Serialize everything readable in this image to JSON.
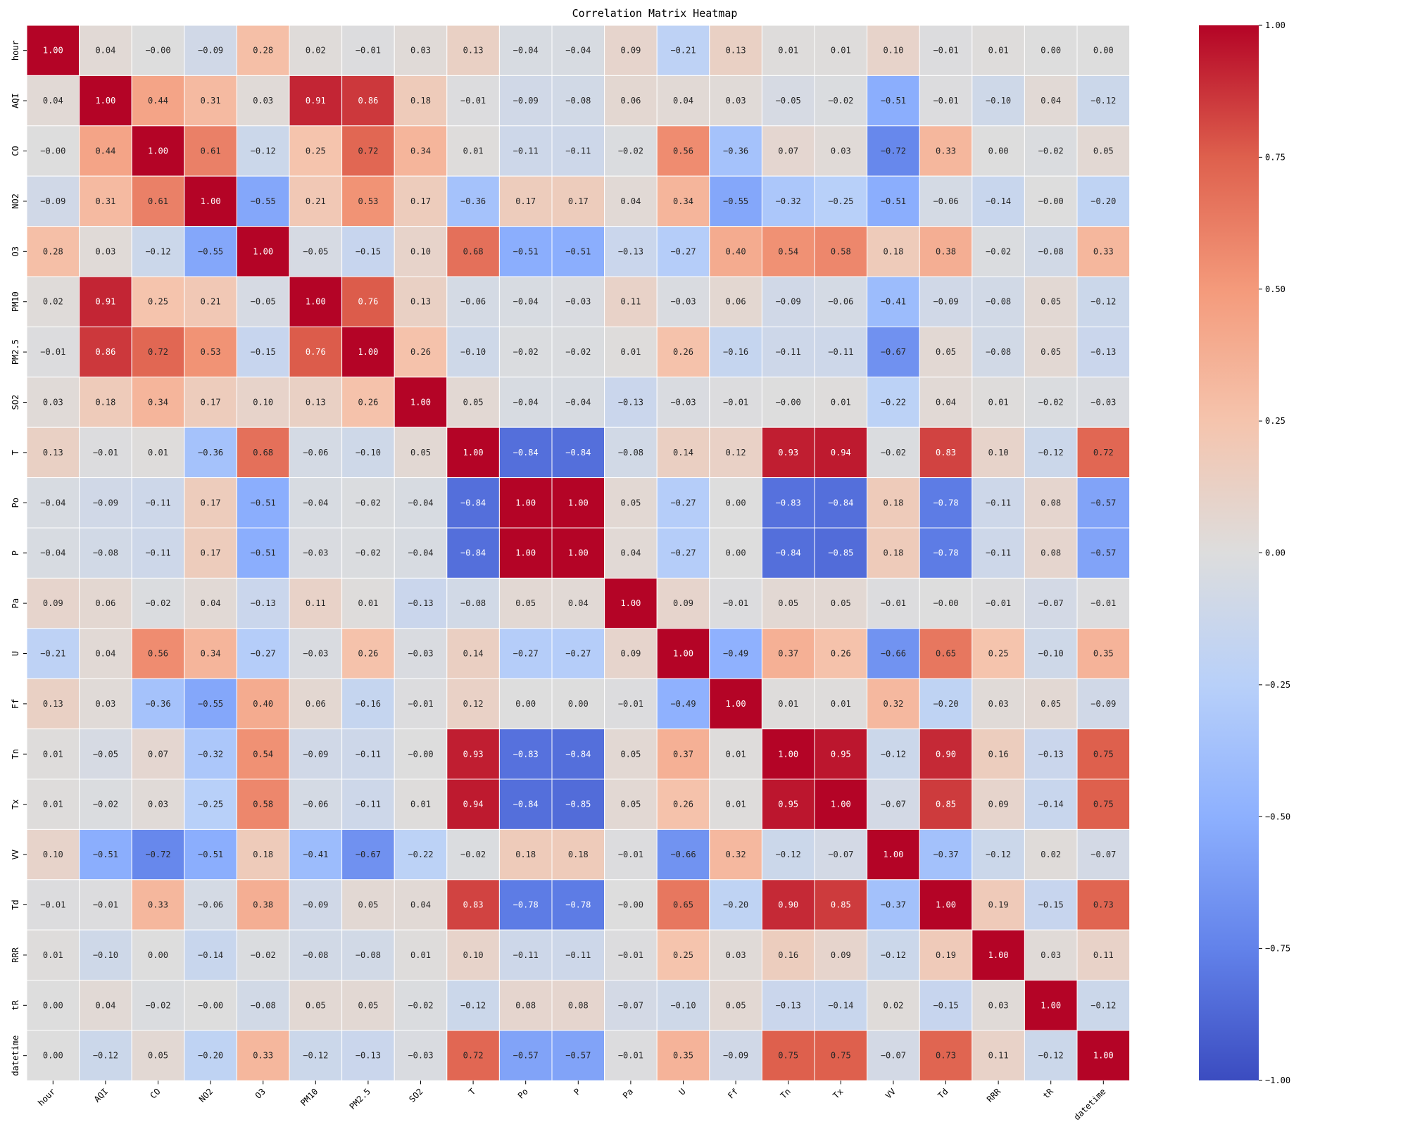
{
  "chart_data": {
    "type": "heatmap",
    "title": "Correlation Matrix Heatmap",
    "xlabel": "",
    "ylabel": "",
    "labels": [
      "hour",
      "AQI",
      "CO",
      "NO2",
      "O3",
      "PM10",
      "PM2.5",
      "SO2",
      "T",
      "Po",
      "P",
      "Pa",
      "U",
      "Ff",
      "Tn",
      "Tx",
      "VV",
      "Td",
      "RRR",
      "tR",
      "datetime"
    ],
    "values": [
      [
        1.0,
        0.04,
        -0.0,
        -0.09,
        0.28,
        0.02,
        -0.01,
        0.03,
        0.13,
        -0.04,
        -0.04,
        0.09,
        -0.21,
        0.13,
        0.01,
        0.01,
        0.1,
        -0.01,
        0.01,
        0.0,
        0.0
      ],
      [
        0.04,
        1.0,
        0.44,
        0.31,
        0.03,
        0.91,
        0.86,
        0.18,
        -0.01,
        -0.09,
        -0.08,
        0.06,
        0.04,
        0.03,
        -0.05,
        -0.02,
        -0.51,
        -0.01,
        -0.1,
        0.04,
        -0.12
      ],
      [
        -0.0,
        0.44,
        1.0,
        0.61,
        -0.12,
        0.25,
        0.72,
        0.34,
        0.01,
        -0.11,
        -0.11,
        -0.02,
        0.56,
        -0.36,
        0.07,
        0.03,
        -0.72,
        0.33,
        0.0,
        -0.02,
        0.05
      ],
      [
        -0.09,
        0.31,
        0.61,
        1.0,
        -0.55,
        0.21,
        0.53,
        0.17,
        -0.36,
        0.17,
        0.17,
        0.04,
        0.34,
        -0.55,
        -0.32,
        -0.25,
        -0.51,
        -0.06,
        -0.14,
        -0.0,
        -0.2
      ],
      [
        0.28,
        0.03,
        -0.12,
        -0.55,
        1.0,
        -0.05,
        -0.15,
        0.1,
        0.68,
        -0.51,
        -0.51,
        -0.13,
        -0.27,
        0.4,
        0.54,
        0.58,
        0.18,
        0.38,
        -0.02,
        -0.08,
        0.33
      ],
      [
        0.02,
        0.91,
        0.25,
        0.21,
        -0.05,
        1.0,
        0.76,
        0.13,
        -0.06,
        -0.04,
        -0.03,
        0.11,
        -0.03,
        0.06,
        -0.09,
        -0.06,
        -0.41,
        -0.09,
        -0.08,
        0.05,
        -0.12
      ],
      [
        -0.01,
        0.86,
        0.72,
        0.53,
        -0.15,
        0.76,
        1.0,
        0.26,
        -0.1,
        -0.02,
        -0.02,
        0.01,
        0.26,
        -0.16,
        -0.11,
        -0.11,
        -0.67,
        0.05,
        -0.08,
        0.05,
        -0.13
      ],
      [
        0.03,
        0.18,
        0.34,
        0.17,
        0.1,
        0.13,
        0.26,
        1.0,
        0.05,
        -0.04,
        -0.04,
        -0.13,
        -0.03,
        -0.01,
        -0.0,
        0.01,
        -0.22,
        0.04,
        0.01,
        -0.02,
        -0.03
      ],
      [
        0.13,
        -0.01,
        0.01,
        -0.36,
        0.68,
        -0.06,
        -0.1,
        0.05,
        1.0,
        -0.84,
        -0.84,
        -0.08,
        0.14,
        0.12,
        0.93,
        0.94,
        -0.02,
        0.83,
        0.1,
        -0.12,
        0.72
      ],
      [
        -0.04,
        -0.09,
        -0.11,
        0.17,
        -0.51,
        -0.04,
        -0.02,
        -0.04,
        -0.84,
        1.0,
        1.0,
        0.05,
        -0.27,
        0.0,
        -0.83,
        -0.84,
        0.18,
        -0.78,
        -0.11,
        0.08,
        -0.57
      ],
      [
        -0.04,
        -0.08,
        -0.11,
        0.17,
        -0.51,
        -0.03,
        -0.02,
        -0.04,
        -0.84,
        1.0,
        1.0,
        0.04,
        -0.27,
        0.0,
        -0.84,
        -0.85,
        0.18,
        -0.78,
        -0.11,
        0.08,
        -0.57
      ],
      [
        0.09,
        0.06,
        -0.02,
        0.04,
        -0.13,
        0.11,
        0.01,
        -0.13,
        -0.08,
        0.05,
        0.04,
        1.0,
        0.09,
        -0.01,
        0.05,
        0.05,
        -0.01,
        -0.0,
        -0.01,
        -0.07,
        -0.01
      ],
      [
        -0.21,
        0.04,
        0.56,
        0.34,
        -0.27,
        -0.03,
        0.26,
        -0.03,
        0.14,
        -0.27,
        -0.27,
        0.09,
        1.0,
        -0.49,
        0.37,
        0.26,
        -0.66,
        0.65,
        0.25,
        -0.1,
        0.35
      ],
      [
        0.13,
        0.03,
        -0.36,
        -0.55,
        0.4,
        0.06,
        -0.16,
        -0.01,
        0.12,
        0.0,
        0.0,
        -0.01,
        -0.49,
        1.0,
        0.01,
        0.01,
        0.32,
        -0.2,
        0.03,
        0.05,
        -0.09
      ],
      [
        0.01,
        -0.05,
        0.07,
        -0.32,
        0.54,
        -0.09,
        -0.11,
        -0.0,
        0.93,
        -0.83,
        -0.84,
        0.05,
        0.37,
        0.01,
        1.0,
        0.95,
        -0.12,
        0.9,
        0.16,
        -0.13,
        0.75
      ],
      [
        0.01,
        -0.02,
        0.03,
        -0.25,
        0.58,
        -0.06,
        -0.11,
        0.01,
        0.94,
        -0.84,
        -0.85,
        0.05,
        0.26,
        0.01,
        0.95,
        1.0,
        -0.07,
        0.85,
        0.09,
        -0.14,
        0.75
      ],
      [
        0.1,
        -0.51,
        -0.72,
        -0.51,
        0.18,
        -0.41,
        -0.67,
        -0.22,
        -0.02,
        0.18,
        0.18,
        -0.01,
        -0.66,
        0.32,
        -0.12,
        -0.07,
        1.0,
        -0.37,
        -0.12,
        0.02,
        -0.07
      ],
      [
        -0.01,
        -0.01,
        0.33,
        -0.06,
        0.38,
        -0.09,
        0.05,
        0.04,
        0.83,
        -0.78,
        -0.78,
        -0.0,
        0.65,
        -0.2,
        0.9,
        0.85,
        -0.37,
        1.0,
        0.19,
        -0.15,
        0.73
      ],
      [
        0.01,
        -0.1,
        0.0,
        -0.14,
        -0.02,
        -0.08,
        -0.08,
        0.01,
        0.1,
        -0.11,
        -0.11,
        -0.01,
        0.25,
        0.03,
        0.16,
        0.09,
        -0.12,
        0.19,
        1.0,
        0.03,
        0.11
      ],
      [
        0.0,
        0.04,
        -0.02,
        -0.0,
        -0.08,
        0.05,
        0.05,
        -0.02,
        -0.12,
        0.08,
        0.08,
        -0.07,
        -0.1,
        0.05,
        -0.13,
        -0.14,
        0.02,
        -0.15,
        0.03,
        1.0,
        -0.12
      ],
      [
        0.0,
        -0.12,
        0.05,
        -0.2,
        0.33,
        -0.12,
        -0.13,
        -0.03,
        0.72,
        -0.57,
        -0.57,
        -0.01,
        0.35,
        -0.09,
        0.75,
        0.75,
        -0.07,
        0.73,
        0.11,
        -0.12,
        1.0
      ]
    ],
    "colormap": "coolwarm",
    "vmin": -1.0,
    "vmax": 1.0,
    "annotate": true,
    "annotation_format": "0.00",
    "colorbar": {
      "ticks": [
        1.0,
        0.75,
        0.5,
        0.25,
        0.0,
        -0.25,
        -0.5,
        -0.75,
        -1.0
      ],
      "tick_labels": [
        "1.00",
        "0.75",
        "0.50",
        "0.25",
        "0.00",
        "−0.25",
        "−0.50",
        "−0.75",
        "−1.00"
      ]
    },
    "colors": {
      "low": "#3b4cc0",
      "mid": "#dddddd",
      "high": "#b40426"
    }
  }
}
